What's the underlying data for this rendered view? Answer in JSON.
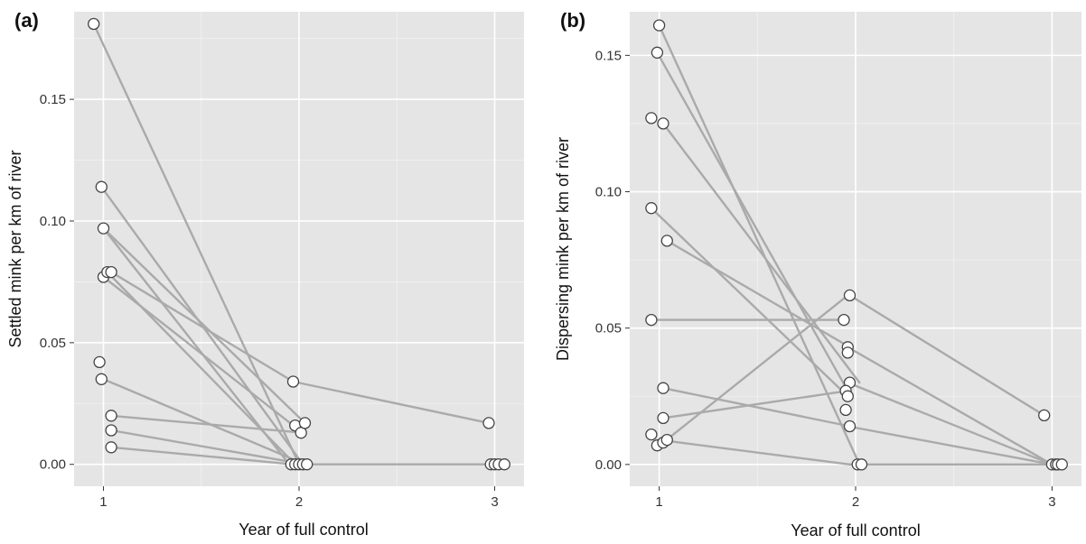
{
  "chart_data": [
    {
      "type": "line",
      "panel_label": "(a)",
      "xlabel": "Year of full control",
      "ylabel": "Settled mink per km of river",
      "xlim": [
        0.85,
        3.15
      ],
      "ylim": [
        -0.009,
        0.186
      ],
      "x_ticks": [
        1,
        2,
        3
      ],
      "x_tick_labels": [
        "1",
        "2",
        "3"
      ],
      "y_ticks": [
        0,
        0.05,
        0.1,
        0.15
      ],
      "y_tick_labels": [
        "0.00",
        "0.05",
        "0.10",
        "0.15"
      ],
      "series": [
        {
          "x": [
            0.95,
            2.0
          ],
          "y": [
            0.181,
            0.0
          ]
        },
        {
          "x": [
            0.99,
            2.02
          ],
          "y": [
            0.114,
            0.0
          ]
        },
        {
          "x": [
            1.0,
            2.03
          ],
          "y": [
            0.097,
            0.017
          ]
        },
        {
          "x": [
            1.0,
            1.95
          ],
          "y": [
            0.097,
            0.0
          ]
        },
        {
          "x": [
            1.0,
            1.97
          ],
          "y": [
            0.077,
            0.016
          ]
        },
        {
          "x": [
            1.02,
            1.98
          ],
          "y": [
            0.079,
            0.0
          ]
        },
        {
          "x": [
            1.04,
            1.97
          ],
          "y": [
            0.079,
            0.034
          ]
        },
        {
          "x": [
            1.97,
            2.97
          ],
          "y": [
            0.034,
            0.017
          ]
        },
        {
          "x": [
            1.0,
            2.03
          ],
          "y": [
            0.035,
            0.0
          ]
        },
        {
          "x": [
            1.04,
            2.02
          ],
          "y": [
            0.02,
            0.013
          ]
        },
        {
          "x": [
            1.04,
            2.03
          ],
          "y": [
            0.014,
            0.0
          ]
        },
        {
          "x": [
            1.04,
            1.97
          ],
          "y": [
            0.007,
            0.0
          ]
        },
        {
          "x": [
            1.97,
            3.05
          ],
          "y": [
            0.0,
            0.0
          ]
        }
      ],
      "points": [
        {
          "x": 0.95,
          "y": 0.181
        },
        {
          "x": 0.99,
          "y": 0.114
        },
        {
          "x": 1.0,
          "y": 0.097
        },
        {
          "x": 1.0,
          "y": 0.077
        },
        {
          "x": 1.02,
          "y": 0.079
        },
        {
          "x": 1.04,
          "y": 0.079
        },
        {
          "x": 0.98,
          "y": 0.042
        },
        {
          "x": 0.99,
          "y": 0.035
        },
        {
          "x": 1.04,
          "y": 0.02
        },
        {
          "x": 1.04,
          "y": 0.014
        },
        {
          "x": 1.04,
          "y": 0.007
        },
        {
          "x": 1.97,
          "y": 0.034
        },
        {
          "x": 1.98,
          "y": 0.016
        },
        {
          "x": 2.01,
          "y": 0.013
        },
        {
          "x": 2.03,
          "y": 0.017
        },
        {
          "x": 1.96,
          "y": 0.0
        },
        {
          "x": 1.98,
          "y": 0.0
        },
        {
          "x": 2.0,
          "y": 0.0
        },
        {
          "x": 2.02,
          "y": 0.0
        },
        {
          "x": 2.04,
          "y": 0.0
        },
        {
          "x": 2.97,
          "y": 0.017
        },
        {
          "x": 2.98,
          "y": 0.0
        },
        {
          "x": 3.0,
          "y": 0.0
        },
        {
          "x": 3.02,
          "y": 0.0
        },
        {
          "x": 3.05,
          "y": 0.0
        }
      ]
    },
    {
      "type": "line",
      "panel_label": "(b)",
      "xlabel": "Year of full control",
      "ylabel": "Dispersing mink per km of river",
      "xlim": [
        0.85,
        3.15
      ],
      "ylim": [
        -0.008,
        0.166
      ],
      "x_ticks": [
        1,
        2,
        3
      ],
      "x_tick_labels": [
        "1",
        "2",
        "3"
      ],
      "y_ticks": [
        0,
        0.05,
        0.1,
        0.15
      ],
      "y_tick_labels": [
        "0.00",
        "0.05",
        "0.10",
        "0.15"
      ],
      "series": [
        {
          "x": [
            1.0,
            2.02
          ],
          "y": [
            0.161,
            0.0
          ]
        },
        {
          "x": [
            0.99,
            1.96
          ],
          "y": [
            0.151,
            0.027
          ]
        },
        {
          "x": [
            1.02,
            2.02
          ],
          "y": [
            0.125,
            0.03
          ]
        },
        {
          "x": [
            0.96,
            1.96
          ],
          "y": [
            0.094,
            0.025
          ]
        },
        {
          "x": [
            1.04,
            1.97
          ],
          "y": [
            0.082,
            0.043
          ]
        },
        {
          "x": [
            0.96,
            1.94
          ],
          "y": [
            0.053,
            0.053
          ]
        },
        {
          "x": [
            1.02,
            1.97
          ],
          "y": [
            0.028,
            0.014
          ]
        },
        {
          "x": [
            1.02,
            1.96
          ],
          "y": [
            0.017,
            0.027
          ]
        },
        {
          "x": [
            1.02,
            1.96
          ],
          "y": [
            0.008,
            0.062
          ]
        },
        {
          "x": [
            1.0,
            1.97
          ],
          "y": [
            0.009,
            0.0
          ]
        },
        {
          "x": [
            1.97,
            2.96
          ],
          "y": [
            0.062,
            0.018
          ]
        },
        {
          "x": [
            1.96,
            3.0
          ],
          "y": [
            0.043,
            0.0
          ]
        },
        {
          "x": [
            1.96,
            3.0
          ],
          "y": [
            0.03,
            0.0
          ]
        },
        {
          "x": [
            1.96,
            3.0
          ],
          "y": [
            0.014,
            0.0
          ]
        },
        {
          "x": [
            1.97,
            3.05
          ],
          "y": [
            0.0,
            0.0
          ]
        }
      ],
      "points": [
        {
          "x": 1.0,
          "y": 0.161
        },
        {
          "x": 0.99,
          "y": 0.151
        },
        {
          "x": 0.96,
          "y": 0.127
        },
        {
          "x": 1.02,
          "y": 0.125
        },
        {
          "x": 0.96,
          "y": 0.094
        },
        {
          "x": 1.04,
          "y": 0.082
        },
        {
          "x": 0.96,
          "y": 0.053
        },
        {
          "x": 1.02,
          "y": 0.028
        },
        {
          "x": 1.02,
          "y": 0.017
        },
        {
          "x": 0.96,
          "y": 0.011
        },
        {
          "x": 0.99,
          "y": 0.007
        },
        {
          "x": 1.02,
          "y": 0.008
        },
        {
          "x": 1.04,
          "y": 0.009
        },
        {
          "x": 1.97,
          "y": 0.062
        },
        {
          "x": 1.94,
          "y": 0.053
        },
        {
          "x": 1.96,
          "y": 0.043
        },
        {
          "x": 1.96,
          "y": 0.041
        },
        {
          "x": 1.97,
          "y": 0.03
        },
        {
          "x": 1.95,
          "y": 0.027
        },
        {
          "x": 1.96,
          "y": 0.025
        },
        {
          "x": 1.95,
          "y": 0.02
        },
        {
          "x": 1.97,
          "y": 0.014
        },
        {
          "x": 2.01,
          "y": 0.0
        },
        {
          "x": 2.03,
          "y": 0.0
        },
        {
          "x": 2.96,
          "y": 0.018
        },
        {
          "x": 3.0,
          "y": 0.0
        },
        {
          "x": 3.02,
          "y": 0.0
        },
        {
          "x": 3.03,
          "y": 0.0
        },
        {
          "x": 3.05,
          "y": 0.0
        }
      ]
    }
  ]
}
